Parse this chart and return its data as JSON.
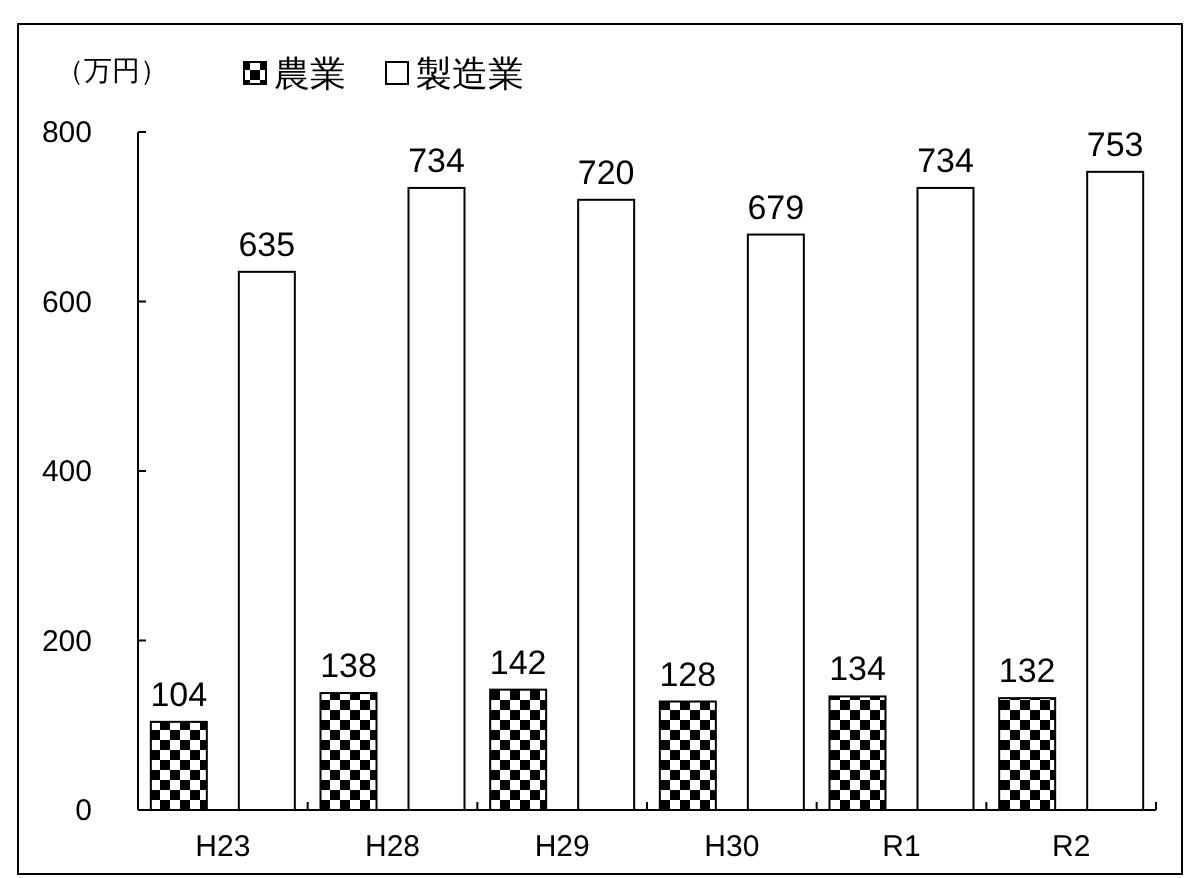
{
  "chart_data": {
    "type": "bar",
    "ylabel": "（万円）",
    "categories": [
      "H23",
      "H28",
      "H29",
      "H30",
      "R1",
      "R2"
    ],
    "series": [
      {
        "name": "農業",
        "color": "#000000",
        "values": [
          104,
          138,
          142,
          128,
          134,
          132
        ]
      },
      {
        "name": "製造業",
        "color": "#ffffff",
        "values": [
          635,
          734,
          720,
          679,
          734,
          753
        ]
      }
    ],
    "ylim": [
      0,
      800
    ],
    "yticks": [
      0,
      200,
      400,
      600,
      800
    ],
    "data_labels": true,
    "legend": "top",
    "grid": false
  }
}
